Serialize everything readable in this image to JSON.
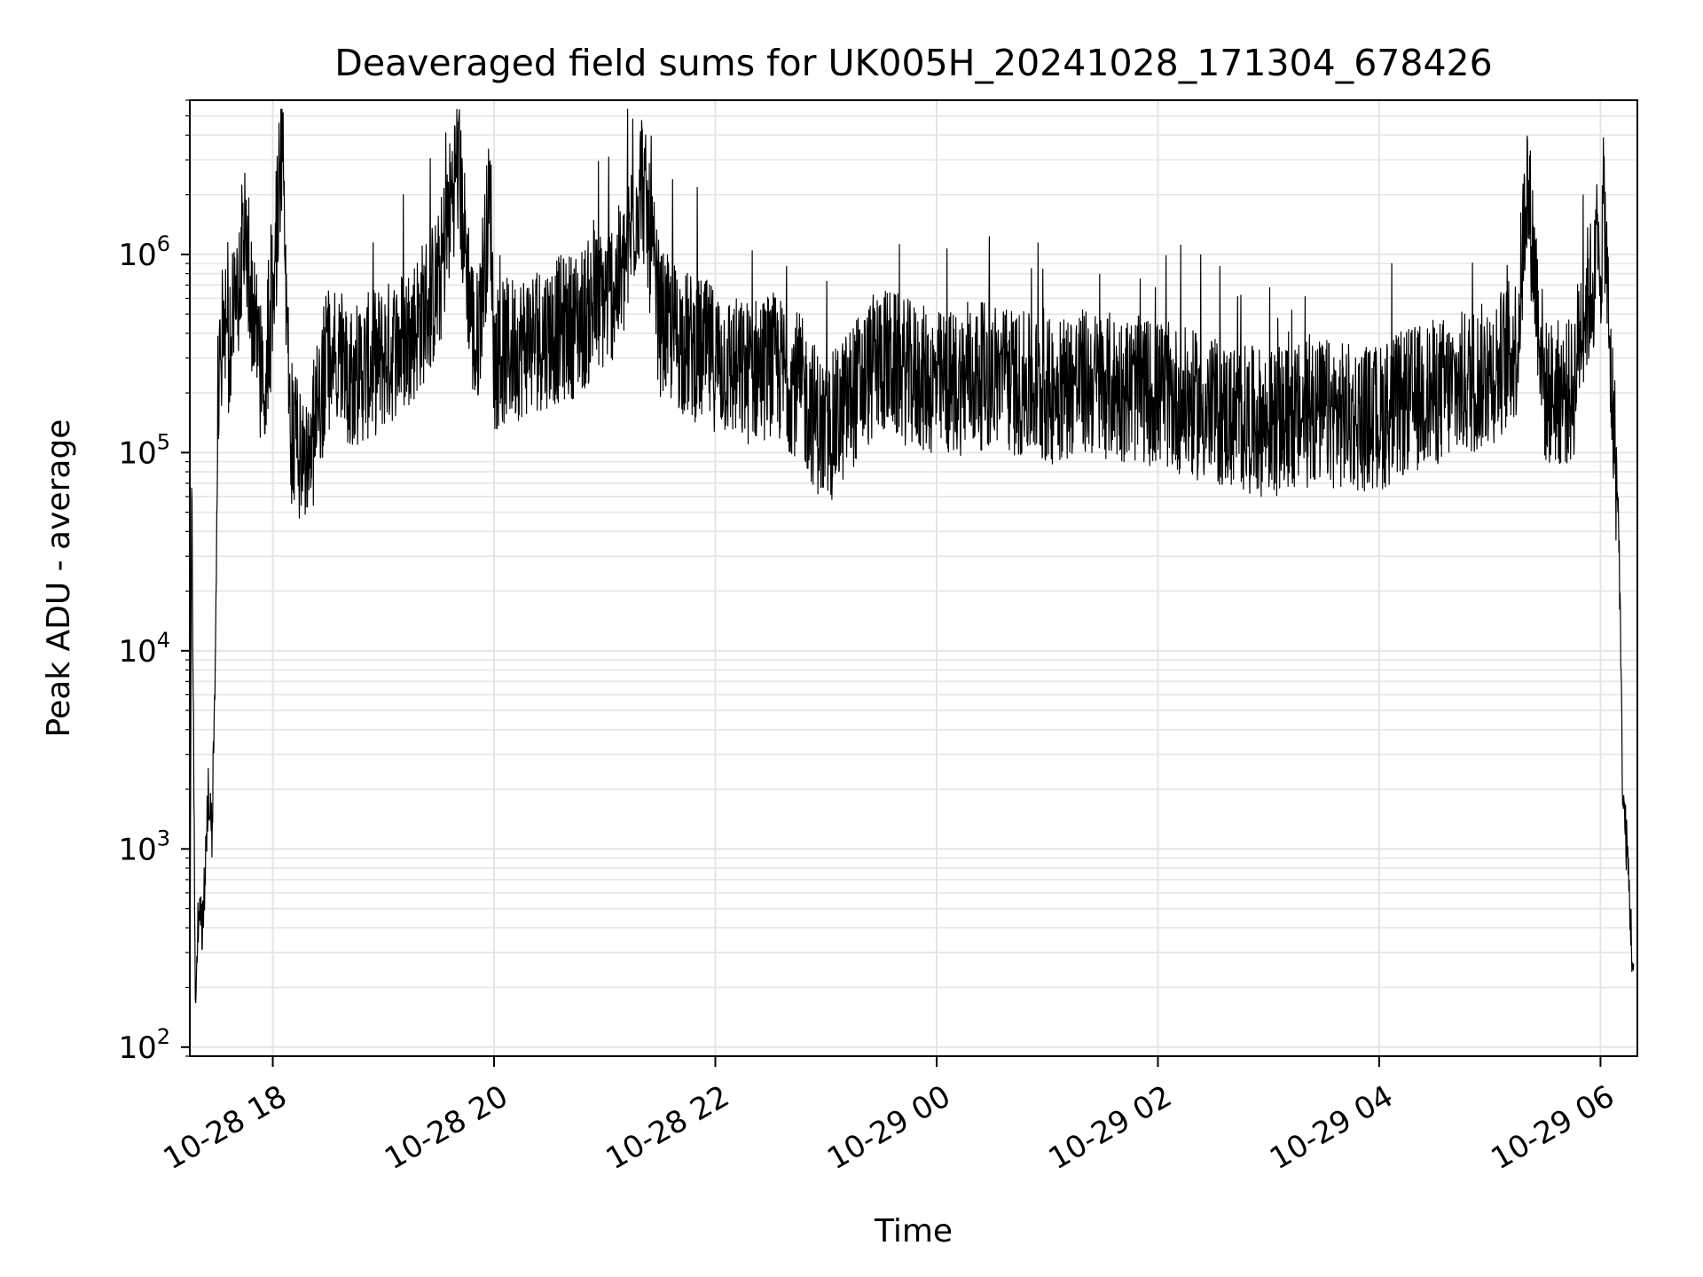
{
  "chart_data": {
    "type": "line",
    "title": "Deaveraged field sums for UK005H_20241028_171304_678426",
    "xlabel": "Time",
    "ylabel": "Peak ADU - average",
    "yscale": "log",
    "ylim": [
      90,
      6000000
    ],
    "xlim": [
      "2024-10-28 17:15",
      "2024-10-29 06:20"
    ],
    "grid": true,
    "line_color": "#000000",
    "grid_color": "#e5e5e5",
    "x_ticks": [
      "2024-10-28 18:00",
      "2024-10-28 20:00",
      "2024-10-28 22:00",
      "2024-10-29 00:00",
      "2024-10-29 02:00",
      "2024-10-29 04:00",
      "2024-10-29 06:00"
    ],
    "x_tick_labels": [
      "10-28 18",
      "10-28 20",
      "10-28 22",
      "10-29 00",
      "10-29 02",
      "10-29 04",
      "10-29 06"
    ],
    "y_tick_labels": [
      {
        "value": 100,
        "base": "10",
        "exp": "2"
      },
      {
        "value": 1000,
        "base": "10",
        "exp": "3"
      },
      {
        "value": 10000,
        "base": "10",
        "exp": "4"
      },
      {
        "value": 100000,
        "base": "10",
        "exp": "5"
      },
      {
        "value": 1000000,
        "base": "10",
        "exp": "6"
      }
    ],
    "series": [
      {
        "name": "",
        "points": [
          [
            "2024-10-28 17:15",
            120
          ],
          [
            "2024-10-28 17:16",
            100000
          ],
          [
            "2024-10-28 17:18",
            150
          ],
          [
            "2024-10-28 17:20",
            600
          ],
          [
            "2024-10-28 17:22",
            400
          ],
          [
            "2024-10-28 17:25",
            2000
          ],
          [
            "2024-10-28 17:27",
            1200
          ],
          [
            "2024-10-28 17:29",
            9000
          ],
          [
            "2024-10-28 17:30",
            200000
          ],
          [
            "2024-10-28 17:33",
            500000
          ],
          [
            "2024-10-28 17:36",
            350000
          ],
          [
            "2024-10-28 17:40",
            600000
          ],
          [
            "2024-10-28 17:45",
            1500000
          ],
          [
            "2024-10-28 17:50",
            400000
          ],
          [
            "2024-10-28 17:55",
            200000
          ],
          [
            "2024-10-28 18:00",
            600000
          ],
          [
            "2024-10-28 18:05",
            3500000
          ],
          [
            "2024-10-28 18:10",
            120000
          ],
          [
            "2024-10-28 18:20",
            100000
          ],
          [
            "2024-10-28 18:30",
            300000
          ],
          [
            "2024-10-28 18:45",
            250000
          ],
          [
            "2024-10-28 19:00",
            300000
          ],
          [
            "2024-10-28 19:15",
            400000
          ],
          [
            "2024-10-28 19:30",
            700000
          ],
          [
            "2024-10-28 19:40",
            3000000
          ],
          [
            "2024-10-28 19:50",
            300000
          ],
          [
            "2024-10-28 19:58",
            2000000
          ],
          [
            "2024-10-28 20:00",
            300000
          ],
          [
            "2024-10-28 20:15",
            350000
          ],
          [
            "2024-10-28 20:30",
            400000
          ],
          [
            "2024-10-28 20:45",
            450000
          ],
          [
            "2024-10-28 21:00",
            600000
          ],
          [
            "2024-10-28 21:10",
            800000
          ],
          [
            "2024-10-28 21:20",
            2500000
          ],
          [
            "2024-10-28 21:30",
            450000
          ],
          [
            "2024-10-28 21:45",
            350000
          ],
          [
            "2024-10-28 22:00",
            300000
          ],
          [
            "2024-10-28 22:15",
            250000
          ],
          [
            "2024-10-28 22:30",
            280000
          ],
          [
            "2024-10-28 22:45",
            220000
          ],
          [
            "2024-10-28 23:00",
            120000
          ],
          [
            "2024-10-28 23:15",
            200000
          ],
          [
            "2024-10-28 23:30",
            300000
          ],
          [
            "2024-10-28 23:45",
            250000
          ],
          [
            "2024-10-29 00:00",
            220000
          ],
          [
            "2024-10-29 00:15",
            230000
          ],
          [
            "2024-10-29 00:30",
            250000
          ],
          [
            "2024-10-29 00:45",
            220000
          ],
          [
            "2024-10-29 01:00",
            200000
          ],
          [
            "2024-10-29 01:15",
            230000
          ],
          [
            "2024-10-29 01:30",
            220000
          ],
          [
            "2024-10-29 01:45",
            210000
          ],
          [
            "2024-10-29 02:00",
            200000
          ],
          [
            "2024-10-29 02:15",
            180000
          ],
          [
            "2024-10-29 02:30",
            160000
          ],
          [
            "2024-10-29 02:45",
            150000
          ],
          [
            "2024-10-29 03:00",
            140000
          ],
          [
            "2024-10-29 03:15",
            150000
          ],
          [
            "2024-10-29 03:30",
            160000
          ],
          [
            "2024-10-29 03:45",
            150000
          ],
          [
            "2024-10-29 04:00",
            150000
          ],
          [
            "2024-10-29 04:15",
            180000
          ],
          [
            "2024-10-29 04:30",
            200000
          ],
          [
            "2024-10-29 04:45",
            220000
          ],
          [
            "2024-10-29 05:00",
            250000
          ],
          [
            "2024-10-29 05:15",
            350000
          ],
          [
            "2024-10-29 05:20",
            2500000
          ],
          [
            "2024-10-29 05:30",
            200000
          ],
          [
            "2024-10-29 05:45",
            200000
          ],
          [
            "2024-10-29 05:50",
            500000
          ],
          [
            "2024-10-29 06:00",
            900000
          ],
          [
            "2024-10-29 06:02",
            1900000
          ],
          [
            "2024-10-29 06:05",
            300000
          ],
          [
            "2024-10-29 06:08",
            100000
          ],
          [
            "2024-10-29 06:10",
            40000
          ],
          [
            "2024-10-29 06:12",
            2000
          ],
          [
            "2024-10-29 06:15",
            800
          ],
          [
            "2024-10-29 06:18",
            200
          ]
        ]
      }
    ]
  }
}
